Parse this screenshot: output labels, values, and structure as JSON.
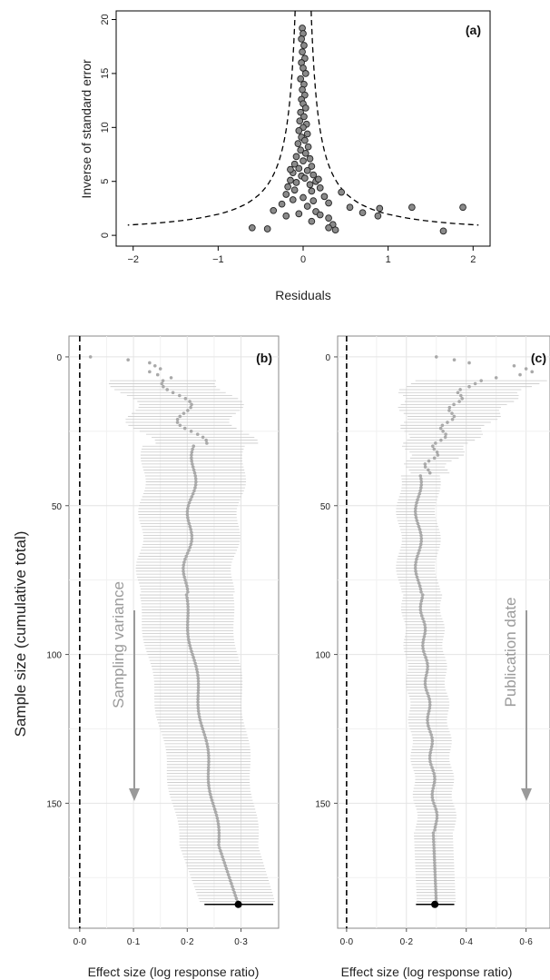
{
  "chart_data": [
    {
      "type": "scatter",
      "panel_label": "(a)",
      "xlabel": "Residuals",
      "ylabel": "Inverse of standard error",
      "xlim": [
        -2.2,
        2.2
      ],
      "ylim": [
        -1,
        20.8
      ],
      "xticks": [
        -2,
        -1,
        0,
        1,
        2
      ],
      "yticks": [
        0,
        5,
        10,
        15,
        20
      ],
      "funnel": "dashed",
      "points": [
        [
          -0.01,
          19.2
        ],
        [
          0.0,
          18.7
        ],
        [
          -0.02,
          18.2
        ],
        [
          0.01,
          17.6
        ],
        [
          -0.01,
          17.0
        ],
        [
          0.02,
          16.4
        ],
        [
          -0.02,
          16.0
        ],
        [
          0.0,
          15.5
        ],
        [
          0.03,
          15.0
        ],
        [
          -0.03,
          14.5
        ],
        [
          0.01,
          14.0
        ],
        [
          -0.01,
          13.5
        ],
        [
          0.02,
          13.0
        ],
        [
          -0.02,
          12.6
        ],
        [
          0.0,
          12.2
        ],
        [
          0.03,
          11.8
        ],
        [
          -0.03,
          11.4
        ],
        [
          0.01,
          11.0
        ],
        [
          -0.04,
          10.6
        ],
        [
          0.04,
          10.3
        ],
        [
          0.0,
          10.0
        ],
        [
          -0.05,
          9.7
        ],
        [
          0.05,
          9.4
        ],
        [
          -0.02,
          9.1
        ],
        [
          0.02,
          8.8
        ],
        [
          -0.06,
          8.5
        ],
        [
          0.06,
          8.2
        ],
        [
          -0.03,
          7.9
        ],
        [
          0.03,
          7.6
        ],
        [
          -0.08,
          7.3
        ],
        [
          0.08,
          7.1
        ],
        [
          0.0,
          6.9
        ],
        [
          -0.1,
          6.6
        ],
        [
          0.1,
          6.4
        ],
        [
          -0.05,
          6.2
        ],
        [
          0.05,
          6.0
        ],
        [
          -0.12,
          5.8
        ],
        [
          0.12,
          5.6
        ],
        [
          -0.02,
          5.5
        ],
        [
          0.02,
          5.3
        ],
        [
          -0.15,
          5.1
        ],
        [
          0.15,
          5.0
        ],
        [
          -0.08,
          4.9
        ],
        [
          0.08,
          4.7
        ],
        [
          -0.18,
          4.5
        ],
        [
          0.2,
          4.4
        ],
        [
          -0.1,
          4.2
        ],
        [
          0.1,
          4.1
        ],
        [
          0.45,
          4.0
        ],
        [
          -0.2,
          3.8
        ],
        [
          0.25,
          3.6
        ],
        [
          0.0,
          3.5
        ],
        [
          -0.12,
          3.3
        ],
        [
          0.12,
          3.2
        ],
        [
          0.3,
          3.0
        ],
        [
          -0.25,
          2.9
        ],
        [
          0.55,
          2.6
        ],
        [
          0.05,
          2.7
        ],
        [
          0.9,
          2.5
        ],
        [
          -0.35,
          2.3
        ],
        [
          0.15,
          2.2
        ],
        [
          0.7,
          2.1
        ],
        [
          -0.05,
          2.0
        ],
        [
          0.2,
          1.9
        ],
        [
          0.88,
          1.8
        ],
        [
          -0.2,
          1.8
        ],
        [
          0.3,
          1.6
        ],
        [
          0.1,
          1.3
        ],
        [
          0.35,
          1.0
        ],
        [
          1.28,
          2.6
        ],
        [
          1.88,
          2.6
        ],
        [
          -0.6,
          0.7
        ],
        [
          -0.42,
          0.6
        ],
        [
          0.3,
          0.7
        ],
        [
          0.38,
          0.5
        ],
        [
          1.65,
          0.4
        ],
        [
          -0.15,
          6.1
        ],
        [
          0.18,
          5.2
        ]
      ]
    },
    {
      "type": "line",
      "panel_label": "(b)",
      "xlabel": "Effect size (log response ratio)",
      "ylabel": "Sample size (cumulative total)",
      "annotation": "Sampling variance",
      "xlim": [
        -0.02,
        0.37
      ],
      "ylim": [
        192,
        -7
      ],
      "xticks": [
        "0·0",
        "0·1",
        "0·2",
        "0·3"
      ],
      "yticks": [
        0,
        50,
        100,
        150
      ],
      "pooled_estimate": 0.295,
      "pooled_ci": [
        0.232,
        0.36
      ]
    },
    {
      "type": "line",
      "panel_label": "(c)",
      "xlabel": "Effect size (log response ratio)",
      "annotation": "Publication date",
      "xlim": [
        -0.03,
        0.68
      ],
      "ylim": [
        192,
        -7
      ],
      "xticks": [
        "0·0",
        "0·2",
        "0·4",
        "0·6"
      ],
      "yticks": [
        0,
        50,
        100,
        150
      ],
      "pooled_estimate": 0.295,
      "pooled_ci": [
        0.232,
        0.36
      ]
    }
  ]
}
